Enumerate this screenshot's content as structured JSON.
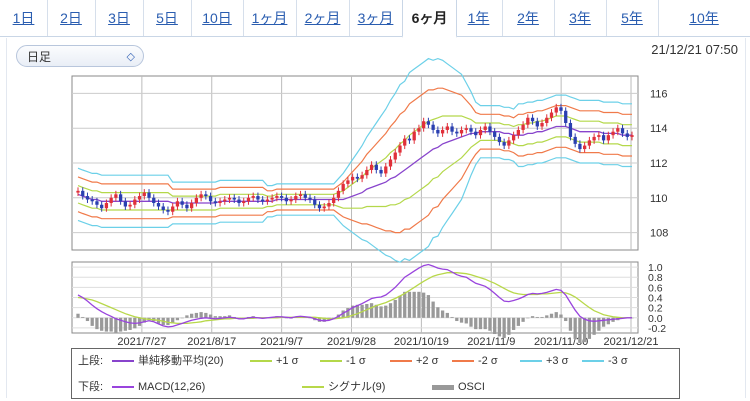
{
  "tabs": [
    {
      "label": "1日"
    },
    {
      "label": "2日"
    },
    {
      "label": "3日"
    },
    {
      "label": "5日"
    },
    {
      "label": "10日"
    },
    {
      "label": "1ヶ月"
    },
    {
      "label": "2ヶ月"
    },
    {
      "label": "3ヶ月"
    },
    {
      "label": "6ヶ月"
    },
    {
      "label": "1年"
    },
    {
      "label": "2年"
    },
    {
      "label": "3年"
    },
    {
      "label": "5年"
    },
    {
      "label": "10年"
    }
  ],
  "active_tab": "6ヶ月",
  "period_select": {
    "value": "日足"
  },
  "timestamp": "21/12/21 07:50",
  "colors": {
    "tab_link": "#2a5db0",
    "up": "#e0303a",
    "down": "#2a3fb0",
    "sma": "#8844cc",
    "s1": "#b4d84a",
    "s2": "#f07a4a",
    "s3": "#6cd0e8",
    "macd": "#9944dd",
    "signal": "#b8d84a",
    "osci": "#999999"
  },
  "chart_data": [
    {
      "type": "candlestick",
      "panel": "upper",
      "x_ticks": [
        "2021/7/27",
        "2021/8/17",
        "2021/9/7",
        "2021/9/28",
        "2021/10/19",
        "2021/11/9",
        "2021/11/30",
        "2021/12/21"
      ],
      "y_ticks": [
        "108",
        "110",
        "112",
        "114",
        "116"
      ],
      "ylim": [
        107,
        117
      ],
      "grid": true,
      "candles_close": [
        110.4,
        110.1,
        109.9,
        109.8,
        109.6,
        109.4,
        109.7,
        110.0,
        110.2,
        109.8,
        109.5,
        109.6,
        109.9,
        110.1,
        110.3,
        110.0,
        109.7,
        109.5,
        109.3,
        109.2,
        109.5,
        109.8,
        109.6,
        109.4,
        109.7,
        110.0,
        110.2,
        110.1,
        109.8,
        109.7,
        109.8,
        109.9,
        110.0,
        109.9,
        109.7,
        109.8,
        110.0,
        110.1,
        109.9,
        109.8,
        109.9,
        110.0,
        110.1,
        110.0,
        109.8,
        109.9,
        110.1,
        110.2,
        110.0,
        109.9,
        109.6,
        109.4,
        109.5,
        109.7,
        110.0,
        110.4,
        110.8,
        111.0,
        111.2,
        111.1,
        111.3,
        111.6,
        111.9,
        111.6,
        111.4,
        111.8,
        112.2,
        112.6,
        113.0,
        113.4,
        113.3,
        113.8,
        114.0,
        114.4,
        114.2,
        113.9,
        113.7,
        113.9,
        114.1,
        113.8,
        113.7,
        113.9,
        114.0,
        113.8,
        113.6,
        113.9,
        114.1,
        113.8,
        113.5,
        113.2,
        113.0,
        113.3,
        113.6,
        113.9,
        114.2,
        114.6,
        114.4,
        114.1,
        114.3,
        114.6,
        114.9,
        115.2,
        115.0,
        114.3,
        113.5,
        113.1,
        112.8,
        113.0,
        113.3,
        113.5,
        113.6,
        113.3,
        113.6,
        113.8,
        114.0,
        113.7,
        113.5,
        113.6
      ],
      "sma20": [
        110.2,
        110.1,
        110.0,
        109.9,
        109.9,
        109.8,
        109.8,
        109.8,
        109.8,
        109.8,
        109.8,
        109.8,
        109.8,
        109.8,
        109.8,
        109.8,
        109.8,
        109.8,
        109.8,
        109.8,
        109.7,
        109.7,
        109.7,
        109.7,
        109.7,
        109.7,
        109.7,
        109.7,
        109.7,
        109.7,
        109.8,
        109.8,
        109.8,
        109.8,
        109.8,
        109.8,
        109.8,
        109.8,
        109.8,
        109.8,
        109.8,
        109.8,
        109.9,
        109.9,
        109.9,
        109.9,
        109.9,
        109.9,
        109.9,
        109.9,
        109.9,
        109.9,
        109.9,
        109.9,
        109.9,
        109.9,
        109.9,
        110.0,
        110.1,
        110.2,
        110.3,
        110.5,
        110.6,
        110.7,
        110.8,
        110.9,
        111.1,
        111.2,
        111.4,
        111.6,
        111.8,
        112.0,
        112.2,
        112.4,
        112.6,
        112.8,
        112.9,
        113.1,
        113.2,
        113.3,
        113.4,
        113.5,
        113.6,
        113.7,
        113.7,
        113.8,
        113.8,
        113.8,
        113.8,
        113.8,
        113.7,
        113.7,
        113.6,
        113.6,
        113.6,
        113.7,
        113.7,
        113.8,
        113.8,
        113.9,
        114.0,
        114.1,
        114.1,
        114.1,
        114.0,
        113.9,
        113.8,
        113.8,
        113.8,
        113.8,
        113.8,
        113.7,
        113.7,
        113.7,
        113.7,
        113.6,
        113.6,
        113.6
      ],
      "sigma_band_halfwidth": [
        0.5,
        0.5,
        0.5,
        0.5,
        0.5,
        0.5,
        0.5,
        0.5,
        0.5,
        0.5,
        0.5,
        0.5,
        0.5,
        0.5,
        0.5,
        0.5,
        0.5,
        0.5,
        0.5,
        0.5,
        0.4,
        0.4,
        0.4,
        0.4,
        0.4,
        0.4,
        0.4,
        0.4,
        0.4,
        0.4,
        0.4,
        0.4,
        0.4,
        0.4,
        0.4,
        0.4,
        0.4,
        0.4,
        0.4,
        0.4,
        0.3,
        0.3,
        0.3,
        0.3,
        0.3,
        0.3,
        0.3,
        0.3,
        0.3,
        0.3,
        0.3,
        0.3,
        0.3,
        0.3,
        0.3,
        0.4,
        0.5,
        0.6,
        0.7,
        0.8,
        0.9,
        1.0,
        1.1,
        1.2,
        1.3,
        1.4,
        1.5,
        1.6,
        1.7,
        1.7,
        1.8,
        1.8,
        1.8,
        1.8,
        1.8,
        1.7,
        1.7,
        1.6,
        1.5,
        1.4,
        1.3,
        1.2,
        1.0,
        0.8,
        0.6,
        0.5,
        0.5,
        0.5,
        0.5,
        0.5,
        0.5,
        0.5,
        0.5,
        0.6,
        0.6,
        0.6,
        0.6,
        0.6,
        0.6,
        0.6,
        0.6,
        0.6,
        0.6,
        0.6,
        0.6,
        0.6,
        0.6,
        0.6,
        0.6,
        0.6,
        0.6,
        0.6,
        0.6,
        0.6,
        0.6,
        0.6,
        0.6,
        0.6
      ]
    },
    {
      "type": "line",
      "panel": "lower",
      "y_ticks": [
        "1.0",
        "0.8",
        "0.6",
        "0.4",
        "0.2",
        "0.0",
        "-0.2"
      ],
      "ylim": [
        -0.3,
        1.1
      ],
      "macd": [
        0.45,
        0.4,
        0.33,
        0.25,
        0.18,
        0.12,
        0.07,
        0.03,
        -0.02,
        -0.05,
        -0.08,
        -0.1,
        -0.11,
        -0.1,
        -0.08,
        -0.06,
        -0.08,
        -0.12,
        -0.16,
        -0.18,
        -0.17,
        -0.14,
        -0.11,
        -0.08,
        -0.05,
        -0.03,
        -0.01,
        0.0,
        -0.01,
        -0.02,
        -0.01,
        0.0,
        0.01,
        0.0,
        -0.02,
        -0.02,
        0.0,
        0.01,
        0.0,
        -0.01,
        0.0,
        0.01,
        0.02,
        0.02,
        0.01,
        0.0,
        0.02,
        0.03,
        0.02,
        0.01,
        -0.02,
        -0.05,
        -0.06,
        -0.05,
        -0.02,
        0.03,
        0.09,
        0.14,
        0.2,
        0.24,
        0.28,
        0.33,
        0.38,
        0.4,
        0.41,
        0.45,
        0.52,
        0.6,
        0.7,
        0.8,
        0.86,
        0.92,
        0.98,
        1.03,
        1.05,
        1.02,
        0.98,
        0.96,
        0.95,
        0.9,
        0.85,
        0.82,
        0.8,
        0.74,
        0.68,
        0.65,
        0.62,
        0.56,
        0.48,
        0.4,
        0.33,
        0.32,
        0.34,
        0.37,
        0.41,
        0.46,
        0.48,
        0.47,
        0.48,
        0.5,
        0.53,
        0.56,
        0.54,
        0.45,
        0.3,
        0.15,
        0.03,
        -0.03,
        -0.06,
        -0.07,
        -0.06,
        -0.05,
        -0.04,
        -0.03,
        -0.02,
        -0.01,
        0.0,
        0.0
      ],
      "signal": [
        0.4,
        0.39,
        0.37,
        0.35,
        0.32,
        0.28,
        0.24,
        0.2,
        0.16,
        0.12,
        0.08,
        0.05,
        0.02,
        0.0,
        -0.02,
        -0.03,
        -0.04,
        -0.05,
        -0.07,
        -0.09,
        -0.1,
        -0.11,
        -0.11,
        -0.11,
        -0.1,
        -0.09,
        -0.08,
        -0.06,
        -0.05,
        -0.04,
        -0.03,
        -0.02,
        -0.02,
        -0.01,
        -0.01,
        -0.01,
        -0.01,
        -0.01,
        0.0,
        0.0,
        0.0,
        0.0,
        0.0,
        0.01,
        0.01,
        0.01,
        0.01,
        0.01,
        0.01,
        0.01,
        0.01,
        0.0,
        -0.01,
        -0.02,
        -0.02,
        -0.01,
        0.0,
        0.02,
        0.05,
        0.08,
        0.12,
        0.16,
        0.2,
        0.24,
        0.27,
        0.3,
        0.34,
        0.38,
        0.43,
        0.48,
        0.54,
        0.6,
        0.66,
        0.72,
        0.77,
        0.82,
        0.85,
        0.87,
        0.89,
        0.89,
        0.89,
        0.88,
        0.87,
        0.85,
        0.82,
        0.79,
        0.76,
        0.72,
        0.68,
        0.63,
        0.58,
        0.53,
        0.49,
        0.47,
        0.46,
        0.46,
        0.46,
        0.46,
        0.47,
        0.47,
        0.48,
        0.49,
        0.5,
        0.49,
        0.46,
        0.41,
        0.34,
        0.27,
        0.2,
        0.14,
        0.1,
        0.06,
        0.04,
        0.02,
        0.01,
        0.0,
        0.0,
        0.0
      ],
      "osci_note": "histogram = macd - signal"
    }
  ],
  "legend": {
    "upper_label": "上段:",
    "lower_label": "下段:",
    "upper_items": [
      {
        "name": "単純移動平均(20)",
        "color": "#8844cc"
      },
      {
        "name": "+1 σ",
        "color": "#b4d84a"
      },
      {
        "name": "-1 σ",
        "color": "#b4d84a"
      },
      {
        "name": "+2 σ",
        "color": "#f07a4a"
      },
      {
        "name": "-2 σ",
        "color": "#f07a4a"
      },
      {
        "name": "+3 σ",
        "color": "#6cd0e8"
      },
      {
        "name": "-3 σ",
        "color": "#6cd0e8"
      }
    ],
    "lower_items": [
      {
        "name": "MACD(12,26)",
        "color": "#9944dd"
      },
      {
        "name": "シグナル(9)",
        "color": "#b8d84a"
      },
      {
        "name": "OSCI",
        "color": "#999999"
      }
    ]
  }
}
